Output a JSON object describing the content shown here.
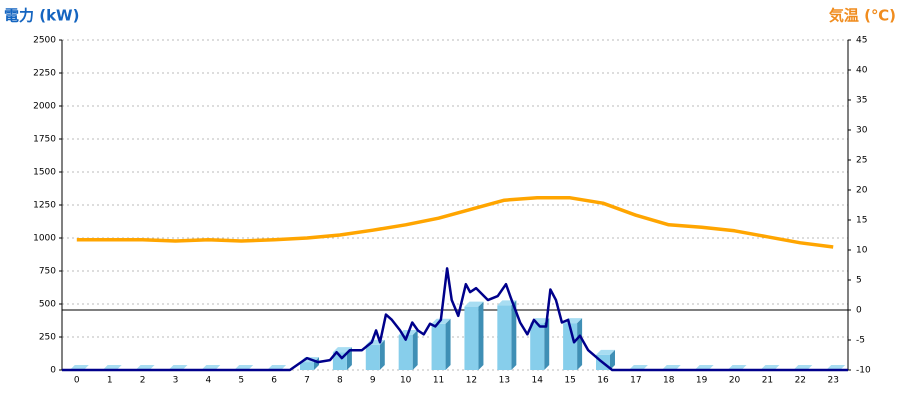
{
  "chart_data": {
    "type": "bar-line",
    "y_title": "電力 (kW)",
    "y2_title": "気温 (℃)",
    "categories": [
      "0",
      "1",
      "2",
      "3",
      "4",
      "5",
      "6",
      "7",
      "8",
      "9",
      "10",
      "11",
      "12",
      "13",
      "14",
      "15",
      "16",
      "17",
      "18",
      "19",
      "20",
      "21",
      "22",
      "23"
    ],
    "xlim": [
      -0.45,
      23.45
    ],
    "ylim": [
      0,
      2500
    ],
    "yticks": [
      0,
      250,
      500,
      750,
      1000,
      1250,
      1500,
      1750,
      2000,
      2250,
      2500
    ],
    "y2lim": [
      -10,
      45
    ],
    "y2ticks": [
      -10,
      -5,
      0,
      5,
      10,
      15,
      20,
      25,
      30,
      35,
      40,
      45
    ],
    "grid": true,
    "series": [
      {
        "kind": "bar",
        "color": "#87ceeb",
        "values": [
          0,
          0,
          0,
          0,
          0,
          0,
          0,
          60,
          135,
          190,
          265,
          350,
          480,
          490,
          355,
          355,
          115,
          0,
          0,
          0,
          0,
          0,
          0,
          0
        ]
      },
      {
        "kind": "line",
        "color": "#00008b",
        "x": [
          -0.45,
          6.48,
          7.0,
          7.33,
          7.7,
          7.9,
          8.06,
          8.3,
          8.67,
          8.97,
          9.1,
          9.22,
          9.4,
          9.58,
          9.83,
          10.0,
          10.2,
          10.37,
          10.55,
          10.74,
          10.9,
          11.07,
          11.26,
          11.4,
          11.6,
          11.83,
          11.96,
          12.14,
          12.5,
          12.8,
          13.05,
          13.2,
          13.48,
          13.7,
          13.9,
          14.08,
          14.27,
          14.4,
          14.57,
          14.75,
          14.94,
          15.12,
          15.3,
          15.55,
          15.9,
          16.28,
          23.45
        ],
        "values": [
          0,
          0,
          90,
          60,
          75,
          135,
          90,
          150,
          150,
          210,
          300,
          210,
          420,
          380,
          300,
          230,
          360,
          300,
          270,
          350,
          330,
          380,
          770,
          530,
          410,
          650,
          590,
          620,
          530,
          560,
          650,
          545,
          360,
          270,
          380,
          330,
          330,
          610,
          530,
          360,
          380,
          210,
          260,
          150,
          75,
          0,
          0
        ]
      },
      {
        "kind": "line",
        "axis": "y2",
        "color": "#ffa500",
        "values": [
          11.7,
          11.7,
          11.7,
          11.5,
          11.7,
          11.5,
          11.7,
          12,
          12.5,
          13.3,
          14.2,
          15.3,
          16.8,
          18.3,
          18.7,
          18.7,
          17.8,
          15.8,
          14.2,
          13.8,
          13.2,
          12.2,
          11.2,
          10.5
        ]
      }
    ]
  }
}
